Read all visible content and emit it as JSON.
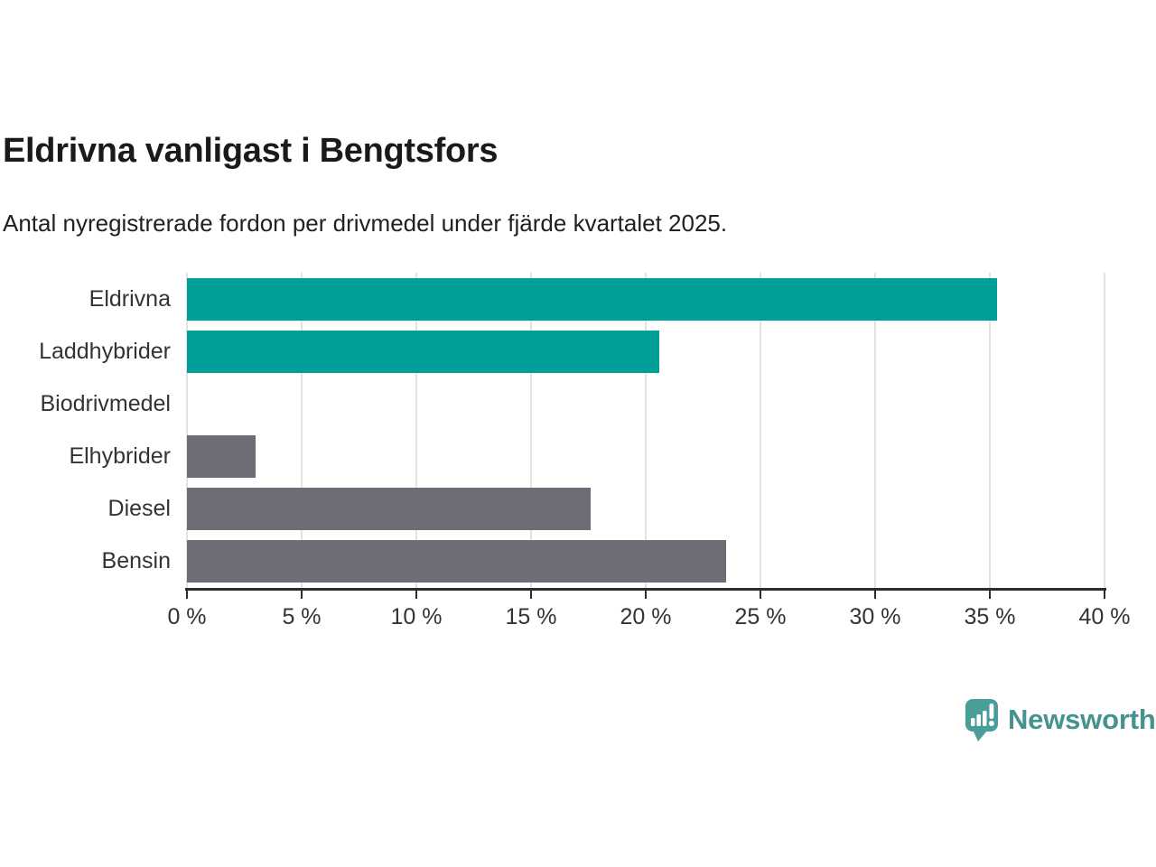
{
  "chart_data": {
    "type": "bar",
    "orientation": "horizontal",
    "title": "Eldrivna vanligast i Bengtsfors",
    "subtitle": "Antal nyregistrerade fordon per drivmedel under fjärde kvartalet 2025.",
    "categories": [
      "Eldrivna",
      "Laddhybrider",
      "Biodrivmedel",
      "Elhybrider",
      "Diesel",
      "Bensin"
    ],
    "values": [
      35.3,
      20.6,
      0,
      3.0,
      17.6,
      23.5
    ],
    "unit": "%",
    "bar_colors": [
      "#00a099",
      "#00a099",
      "#00a099",
      "#6e6d75",
      "#6e6d75",
      "#6e6d75"
    ],
    "xlim": [
      0,
      40
    ],
    "xticks": [
      0,
      5,
      10,
      15,
      20,
      25,
      30,
      35,
      40
    ],
    "xtick_suffix": " %",
    "grid": true,
    "legend": false,
    "ylabel": "",
    "xlabel": ""
  },
  "branding": {
    "logo_text": "Newsworthy",
    "logo_color": "#45938f",
    "logo_icon": "speech-bubble-bar-chart-icon"
  },
  "theme": {
    "bar_teal": "#00a099",
    "bar_gray": "#6e6d75",
    "grid_color": "#e3e3e3",
    "axis_color": "#2d2d2d",
    "title_color": "#1a1a1a",
    "label_color": "#333333",
    "background": "#ffffff"
  }
}
